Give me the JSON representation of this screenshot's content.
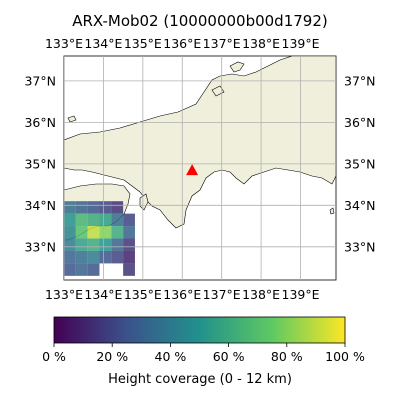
{
  "title": "ARX-Mob02 (10000000b00d1792)",
  "map": {
    "lon_range": [
      133,
      139.9
    ],
    "lat_range": [
      32.2,
      37.6
    ],
    "lon_ticks": [
      "133°E",
      "134°E",
      "135°E",
      "136°E",
      "137°E",
      "138°E",
      "139°E"
    ],
    "lat_ticks": [
      "33°N",
      "34°N",
      "35°N",
      "36°N",
      "37°N"
    ],
    "land_color": "#efefdb",
    "sea_color": "#ffffff",
    "gridlines": true,
    "station_marker": {
      "lon": 136.25,
      "lat": 34.85,
      "color": "#ff0000",
      "shape": "triangle-icon"
    }
  },
  "coverage_grid": {
    "cell_deg": 0.3,
    "cells": [
      {
        "lon": 133.15,
        "lat": 33.95,
        "v": 0.35
      },
      {
        "lon": 133.45,
        "lat": 33.95,
        "v": 0.3
      },
      {
        "lon": 133.75,
        "lat": 33.95,
        "v": 0.25
      },
      {
        "lon": 134.05,
        "lat": 33.95,
        "v": 0.2
      },
      {
        "lon": 134.35,
        "lat": 33.95,
        "v": 0.15
      },
      {
        "lon": 133.15,
        "lat": 33.65,
        "v": 0.5
      },
      {
        "lon": 133.45,
        "lat": 33.65,
        "v": 0.65
      },
      {
        "lon": 133.75,
        "lat": 33.65,
        "v": 0.6
      },
      {
        "lon": 134.05,
        "lat": 33.65,
        "v": 0.55
      },
      {
        "lon": 134.35,
        "lat": 33.65,
        "v": 0.35
      },
      {
        "lon": 134.65,
        "lat": 33.65,
        "v": 0.2
      },
      {
        "lon": 133.15,
        "lat": 33.35,
        "v": 0.45
      },
      {
        "lon": 133.45,
        "lat": 33.35,
        "v": 0.7
      },
      {
        "lon": 133.75,
        "lat": 33.35,
        "v": 0.9
      },
      {
        "lon": 134.05,
        "lat": 33.35,
        "v": 0.8
      },
      {
        "lon": 134.35,
        "lat": 33.35,
        "v": 0.6
      },
      {
        "lon": 134.65,
        "lat": 33.35,
        "v": 0.3
      },
      {
        "lon": 133.15,
        "lat": 33.05,
        "v": 0.4
      },
      {
        "lon": 133.45,
        "lat": 33.05,
        "v": 0.55
      },
      {
        "lon": 133.75,
        "lat": 33.05,
        "v": 0.6
      },
      {
        "lon": 134.05,
        "lat": 33.05,
        "v": 0.5
      },
      {
        "lon": 134.35,
        "lat": 33.05,
        "v": 0.3
      },
      {
        "lon": 134.65,
        "lat": 33.05,
        "v": 0.15
      },
      {
        "lon": 133.15,
        "lat": 32.75,
        "v": 0.3
      },
      {
        "lon": 133.45,
        "lat": 32.75,
        "v": 0.35
      },
      {
        "lon": 133.75,
        "lat": 32.75,
        "v": 0.4
      },
      {
        "lon": 134.05,
        "lat": 32.75,
        "v": 0.25
      },
      {
        "lon": 134.35,
        "lat": 32.75,
        "v": 0.2
      },
      {
        "lon": 134.65,
        "lat": 32.75,
        "v": 0.1
      },
      {
        "lon": 133.15,
        "lat": 32.45,
        "v": 0.25
      },
      {
        "lon": 133.45,
        "lat": 32.45,
        "v": 0.3
      },
      {
        "lon": 133.75,
        "lat": 32.45,
        "v": 0.25
      },
      {
        "lon": 134.65,
        "lat": 32.45,
        "v": 0.15
      }
    ]
  },
  "colorbar": {
    "label": "Height coverage (0 - 12 km)",
    "ticks": [
      "0 %",
      "20 %",
      "40 %",
      "60 %",
      "80 %",
      "100 %"
    ],
    "colormap": [
      "#440154",
      "#3b528b",
      "#21918c",
      "#5ec962",
      "#fde725"
    ]
  }
}
